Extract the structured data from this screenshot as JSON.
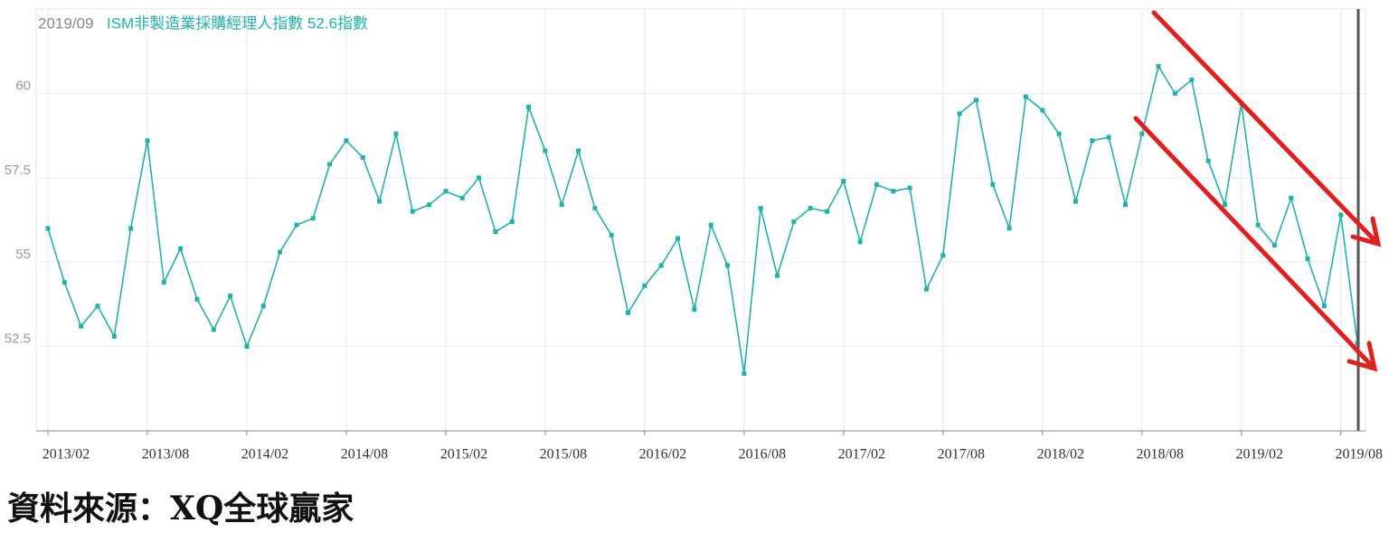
{
  "chart_data": {
    "type": "line",
    "title_date": "2019/09",
    "title": "ISM非製造業採購經理人指數 52.6指數",
    "categories": [
      "2013/02",
      null,
      null,
      null,
      null,
      null,
      "2013/08",
      null,
      null,
      null,
      null,
      null,
      "2014/02",
      null,
      null,
      null,
      null,
      null,
      "2014/08",
      null,
      null,
      null,
      null,
      null,
      "2015/02",
      null,
      null,
      null,
      null,
      null,
      "2015/08",
      null,
      null,
      null,
      null,
      null,
      "2016/02",
      null,
      null,
      null,
      null,
      null,
      "2016/08",
      null,
      null,
      null,
      null,
      null,
      "2017/02",
      null,
      null,
      null,
      null,
      null,
      "2017/08",
      null,
      null,
      null,
      null,
      null,
      "2018/02",
      null,
      null,
      null,
      null,
      null,
      "2018/08",
      null,
      null,
      null,
      null,
      null,
      "2019/02",
      null,
      null,
      null,
      null,
      null,
      "2019/08",
      null
    ],
    "series": [
      {
        "name": "ISM非製造業採購經理人指數",
        "color": "#20b2aa",
        "values": [
          56.0,
          54.4,
          53.1,
          53.7,
          52.8,
          56.0,
          58.6,
          54.4,
          55.4,
          53.9,
          53.0,
          54.0,
          52.5,
          53.7,
          55.3,
          56.1,
          56.3,
          57.9,
          58.6,
          58.1,
          56.8,
          58.8,
          56.5,
          56.7,
          57.1,
          56.9,
          57.5,
          55.9,
          56.2,
          59.6,
          58.3,
          56.7,
          58.3,
          56.6,
          55.8,
          53.5,
          54.3,
          54.9,
          55.7,
          53.6,
          56.1,
          54.9,
          51.7,
          56.6,
          54.6,
          56.2,
          56.6,
          56.5,
          57.4,
          55.6,
          57.3,
          57.1,
          57.2,
          54.2,
          55.2,
          59.4,
          59.8,
          57.3,
          56.0,
          59.9,
          59.5,
          58.8,
          56.8,
          58.6,
          58.7,
          56.7,
          58.8,
          60.8,
          60.0,
          60.4,
          58.0,
          56.7,
          59.7,
          56.1,
          55.5,
          56.9,
          55.1,
          53.7,
          56.4,
          52.6
        ]
      }
    ],
    "ylim": [
      50,
      62.5
    ],
    "yticks": [
      52.5,
      55,
      57.5,
      60
    ],
    "grid": true
  },
  "source": "資料來源：XQ全球贏家"
}
